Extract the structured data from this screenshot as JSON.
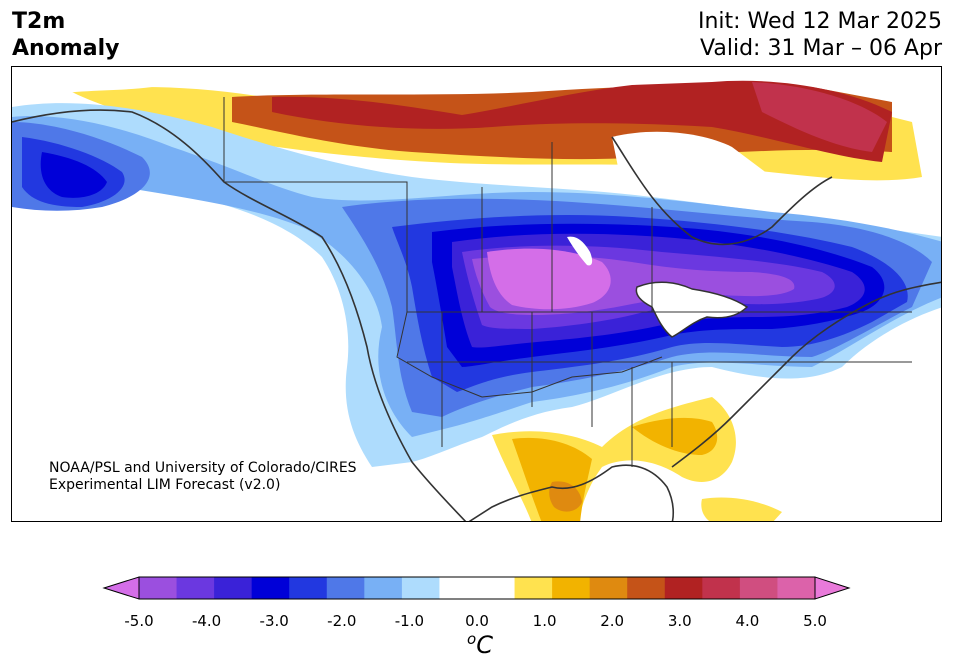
{
  "header": {
    "title_line1": "T2m",
    "title_line2": "Anomaly",
    "init_text": "Init: Wed 12 Mar 2025",
    "valid_text": "Valid: 31 Mar – 06 Apr"
  },
  "credit": {
    "line1": "NOAA/PSL and University of Colorado/CIRES",
    "line2": "Experimental LIM Forecast (v2.0)"
  },
  "colorbar": {
    "unit_base": "C",
    "unit_sup": "o",
    "ticks": [
      "-5.0",
      "-4.0",
      "-3.0",
      "-2.0",
      "-1.0",
      "0.0",
      "1.0",
      "2.0",
      "3.0",
      "4.0",
      "5.0"
    ],
    "colors": [
      "#d46ee8",
      "#9b4fdf",
      "#6b38e0",
      "#3a22d8",
      "#0000d8",
      "#2238e0",
      "#4f78e8",
      "#78b0f5",
      "#aedcfd",
      "#ffffff",
      "#ffffff",
      "#ffe24f",
      "#f2b300",
      "#df8a10",
      "#c55318",
      "#b12222",
      "#c1324c",
      "#d04e80",
      "#dc62aa",
      "#e97ada"
    ]
  }
}
